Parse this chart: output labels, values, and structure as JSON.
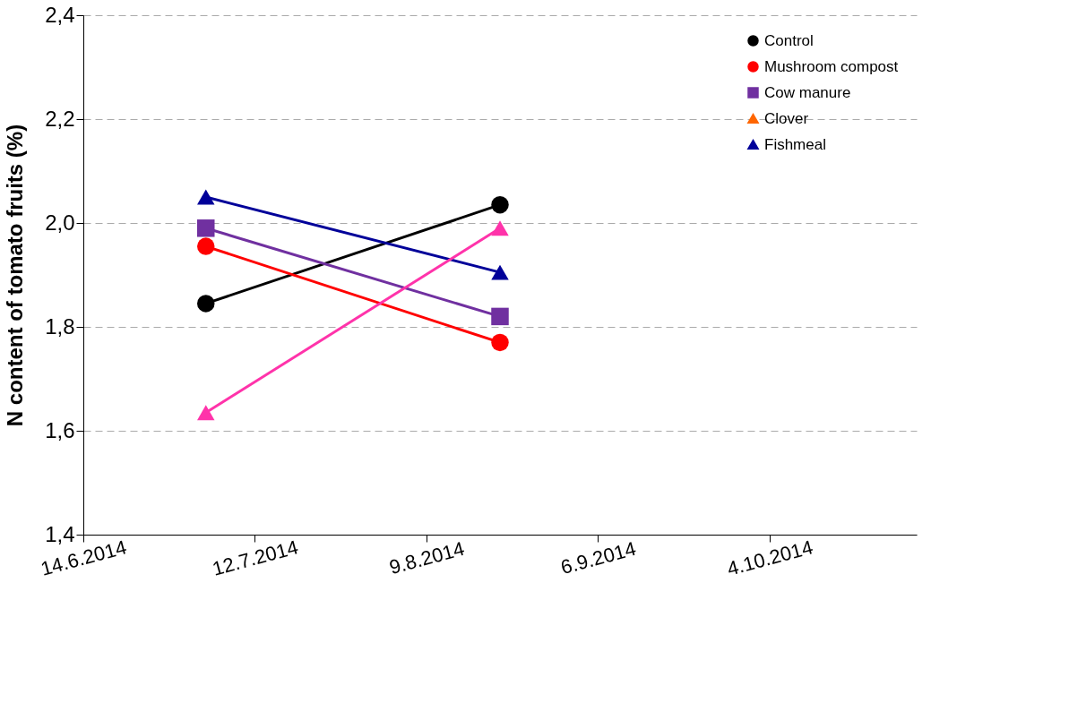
{
  "chart_data": {
    "type": "line",
    "ylabel": "N content of tomato fruits (%)",
    "x": [
      "2014-07-04",
      "2014-08-21"
    ],
    "series": [
      {
        "name": "Control",
        "color": "#000000",
        "marker": "circle",
        "values": [
          1.845,
          2.035
        ]
      },
      {
        "name": "Mushroom compost",
        "color": "#ff0000",
        "marker": "circle",
        "values": [
          1.955,
          1.77
        ]
      },
      {
        "name": "Cow manure",
        "color": "#7030a0",
        "marker": "square",
        "values": [
          1.99,
          1.82
        ]
      },
      {
        "name": "Clover",
        "color": "#ff6600",
        "marker": "triangle",
        "values": [
          null,
          null
        ]
      },
      {
        "name": "Fishmeal",
        "color": "#000099",
        "marker": "triangle",
        "values": [
          2.05,
          1.905
        ]
      },
      {
        "color": "#ff33aa",
        "marker": "triangle",
        "values": [
          1.635,
          1.99
        ]
      }
    ],
    "xlim": [
      "2014-06-14",
      "2014-10-28"
    ],
    "xticks": [
      {
        "value": "2014-06-14",
        "label": "14.6.2014"
      },
      {
        "value": "2014-07-12",
        "label": "12.7.2014"
      },
      {
        "value": "2014-08-09",
        "label": "9.8.2014"
      },
      {
        "value": "2014-09-06",
        "label": "6.9.2014"
      },
      {
        "value": "2014-10-04",
        "label": "4.10.2014"
      }
    ],
    "ylim": [
      1.4,
      2.4
    ],
    "yticks": [
      {
        "value": 1.4,
        "label": "1,4"
      },
      {
        "value": 1.6,
        "label": "1,6"
      },
      {
        "value": 1.8,
        "label": "1,8"
      },
      {
        "value": 2.0,
        "label": "2,0"
      },
      {
        "value": 2.2,
        "label": "2,2"
      },
      {
        "value": 2.4,
        "label": "2,4"
      }
    ],
    "grid": "y",
    "legend": "top right",
    "line_style": "solid"
  }
}
